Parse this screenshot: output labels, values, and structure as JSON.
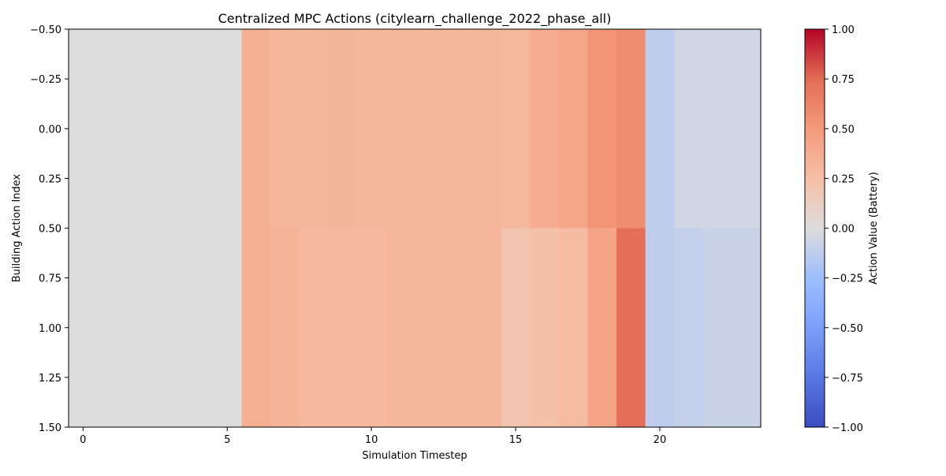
{
  "chart_data": {
    "type": "heatmap",
    "title": "Centralized MPC Actions (citylearn_challenge_2022_phase_all)",
    "xlabel": "Simulation Timestep",
    "ylabel": "Building Action Index",
    "colorbar_label": "Action Value (Battery)",
    "colormap": "coolwarm",
    "vmin": -1.0,
    "vmax": 1.0,
    "xlim": [
      -0.5,
      23.5
    ],
    "ylim": [
      1.5,
      -0.5
    ],
    "x_ticks": [
      "0",
      "5",
      "10",
      "15",
      "20"
    ],
    "y_ticks": [
      "−0.50",
      "−0.25",
      "0.00",
      "0.25",
      "0.50",
      "0.75",
      "1.00",
      "1.25",
      "1.50"
    ],
    "colorbar_ticks": [
      "1.00",
      "0.75",
      "0.50",
      "0.25",
      "0.00",
      "−0.25",
      "−0.50",
      "−0.75",
      "−1.00"
    ],
    "timesteps": [
      0,
      1,
      2,
      3,
      4,
      5,
      6,
      7,
      8,
      9,
      10,
      11,
      12,
      13,
      14,
      15,
      16,
      17,
      18,
      19,
      20,
      21,
      22,
      23
    ],
    "rows": [
      {
        "row_index": 0,
        "values": [
          0,
          0,
          0,
          0,
          0,
          0,
          0.36,
          0.31,
          0.31,
          0.32,
          0.31,
          0.31,
          0.31,
          0.31,
          0.31,
          0.3,
          0.38,
          0.42,
          0.53,
          0.57,
          -0.12,
          -0.05,
          -0.05,
          -0.05
        ]
      },
      {
        "row_index": 1,
        "values": [
          0,
          0,
          0,
          0,
          0,
          0,
          0.36,
          0.33,
          0.29,
          0.29,
          0.29,
          0.31,
          0.31,
          0.31,
          0.31,
          0.21,
          0.24,
          0.27,
          0.43,
          0.74,
          -0.12,
          -0.1,
          -0.08,
          -0.08
        ]
      }
    ]
  }
}
